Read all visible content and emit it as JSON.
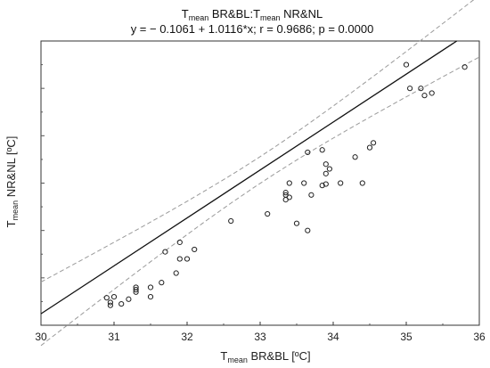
{
  "chart_data": {
    "type": "scatter",
    "title": {
      "main_1": "T",
      "sub_1": "mean",
      "main_2": " BR&BL:T",
      "sub_2": "mean",
      "main_3": " NR&NL"
    },
    "subtitle": "y = − 0.1061 + 1.0116*x; r = 0.9686; p = 0.0000",
    "xlabel": {
      "main": "T",
      "sub": "mean",
      "rest": " BR&BL  [ºC]"
    },
    "ylabel": {
      "main": "T",
      "sub": "mean",
      "rest": " NR&NL [ºC]"
    },
    "xlim": [
      30,
      36
    ],
    "ylim": [
      30,
      36
    ],
    "x_ticks": [
      "30",
      "31",
      "32",
      "33",
      "34",
      "35",
      "36"
    ],
    "y_ticks": [],
    "grid": false,
    "regression": {
      "intercept": -0.1061,
      "slope": 1.0116
    },
    "confidence_band": {
      "style": "dashed",
      "color": "#9a9a9a"
    },
    "marker": {
      "shape": "open-circle",
      "color": "#222222"
    },
    "points": [
      {
        "x": 30.9,
        "y": 30.58
      },
      {
        "x": 30.95,
        "y": 30.48
      },
      {
        "x": 30.95,
        "y": 30.42
      },
      {
        "x": 31.0,
        "y": 30.6
      },
      {
        "x": 31.1,
        "y": 30.45
      },
      {
        "x": 31.2,
        "y": 30.55
      },
      {
        "x": 31.3,
        "y": 30.7
      },
      {
        "x": 31.3,
        "y": 30.8
      },
      {
        "x": 31.3,
        "y": 30.75
      },
      {
        "x": 31.5,
        "y": 30.8
      },
      {
        "x": 31.5,
        "y": 30.6
      },
      {
        "x": 31.65,
        "y": 30.9
      },
      {
        "x": 31.7,
        "y": 31.55
      },
      {
        "x": 31.85,
        "y": 31.1
      },
      {
        "x": 31.9,
        "y": 31.75
      },
      {
        "x": 31.9,
        "y": 31.4
      },
      {
        "x": 32.0,
        "y": 31.4
      },
      {
        "x": 32.1,
        "y": 31.6
      },
      {
        "x": 32.6,
        "y": 32.2
      },
      {
        "x": 33.1,
        "y": 32.35
      },
      {
        "x": 33.35,
        "y": 32.8
      },
      {
        "x": 33.35,
        "y": 32.75
      },
      {
        "x": 33.35,
        "y": 32.65
      },
      {
        "x": 33.4,
        "y": 32.7
      },
      {
        "x": 33.4,
        "y": 33.0
      },
      {
        "x": 33.5,
        "y": 32.15
      },
      {
        "x": 33.6,
        "y": 33.0
      },
      {
        "x": 33.65,
        "y": 33.65
      },
      {
        "x": 33.65,
        "y": 32.0
      },
      {
        "x": 33.7,
        "y": 32.75
      },
      {
        "x": 33.85,
        "y": 33.7
      },
      {
        "x": 33.85,
        "y": 32.95
      },
      {
        "x": 33.9,
        "y": 33.4
      },
      {
        "x": 33.9,
        "y": 32.98
      },
      {
        "x": 33.9,
        "y": 33.2
      },
      {
        "x": 33.95,
        "y": 33.3
      },
      {
        "x": 34.1,
        "y": 33.0
      },
      {
        "x": 34.3,
        "y": 33.55
      },
      {
        "x": 34.4,
        "y": 33.0
      },
      {
        "x": 34.5,
        "y": 33.75
      },
      {
        "x": 34.55,
        "y": 33.85
      },
      {
        "x": 35.0,
        "y": 35.5
      },
      {
        "x": 35.05,
        "y": 35.0
      },
      {
        "x": 35.2,
        "y": 35.0
      },
      {
        "x": 35.25,
        "y": 34.85
      },
      {
        "x": 35.35,
        "y": 34.9
      },
      {
        "x": 35.8,
        "y": 35.45
      }
    ]
  }
}
